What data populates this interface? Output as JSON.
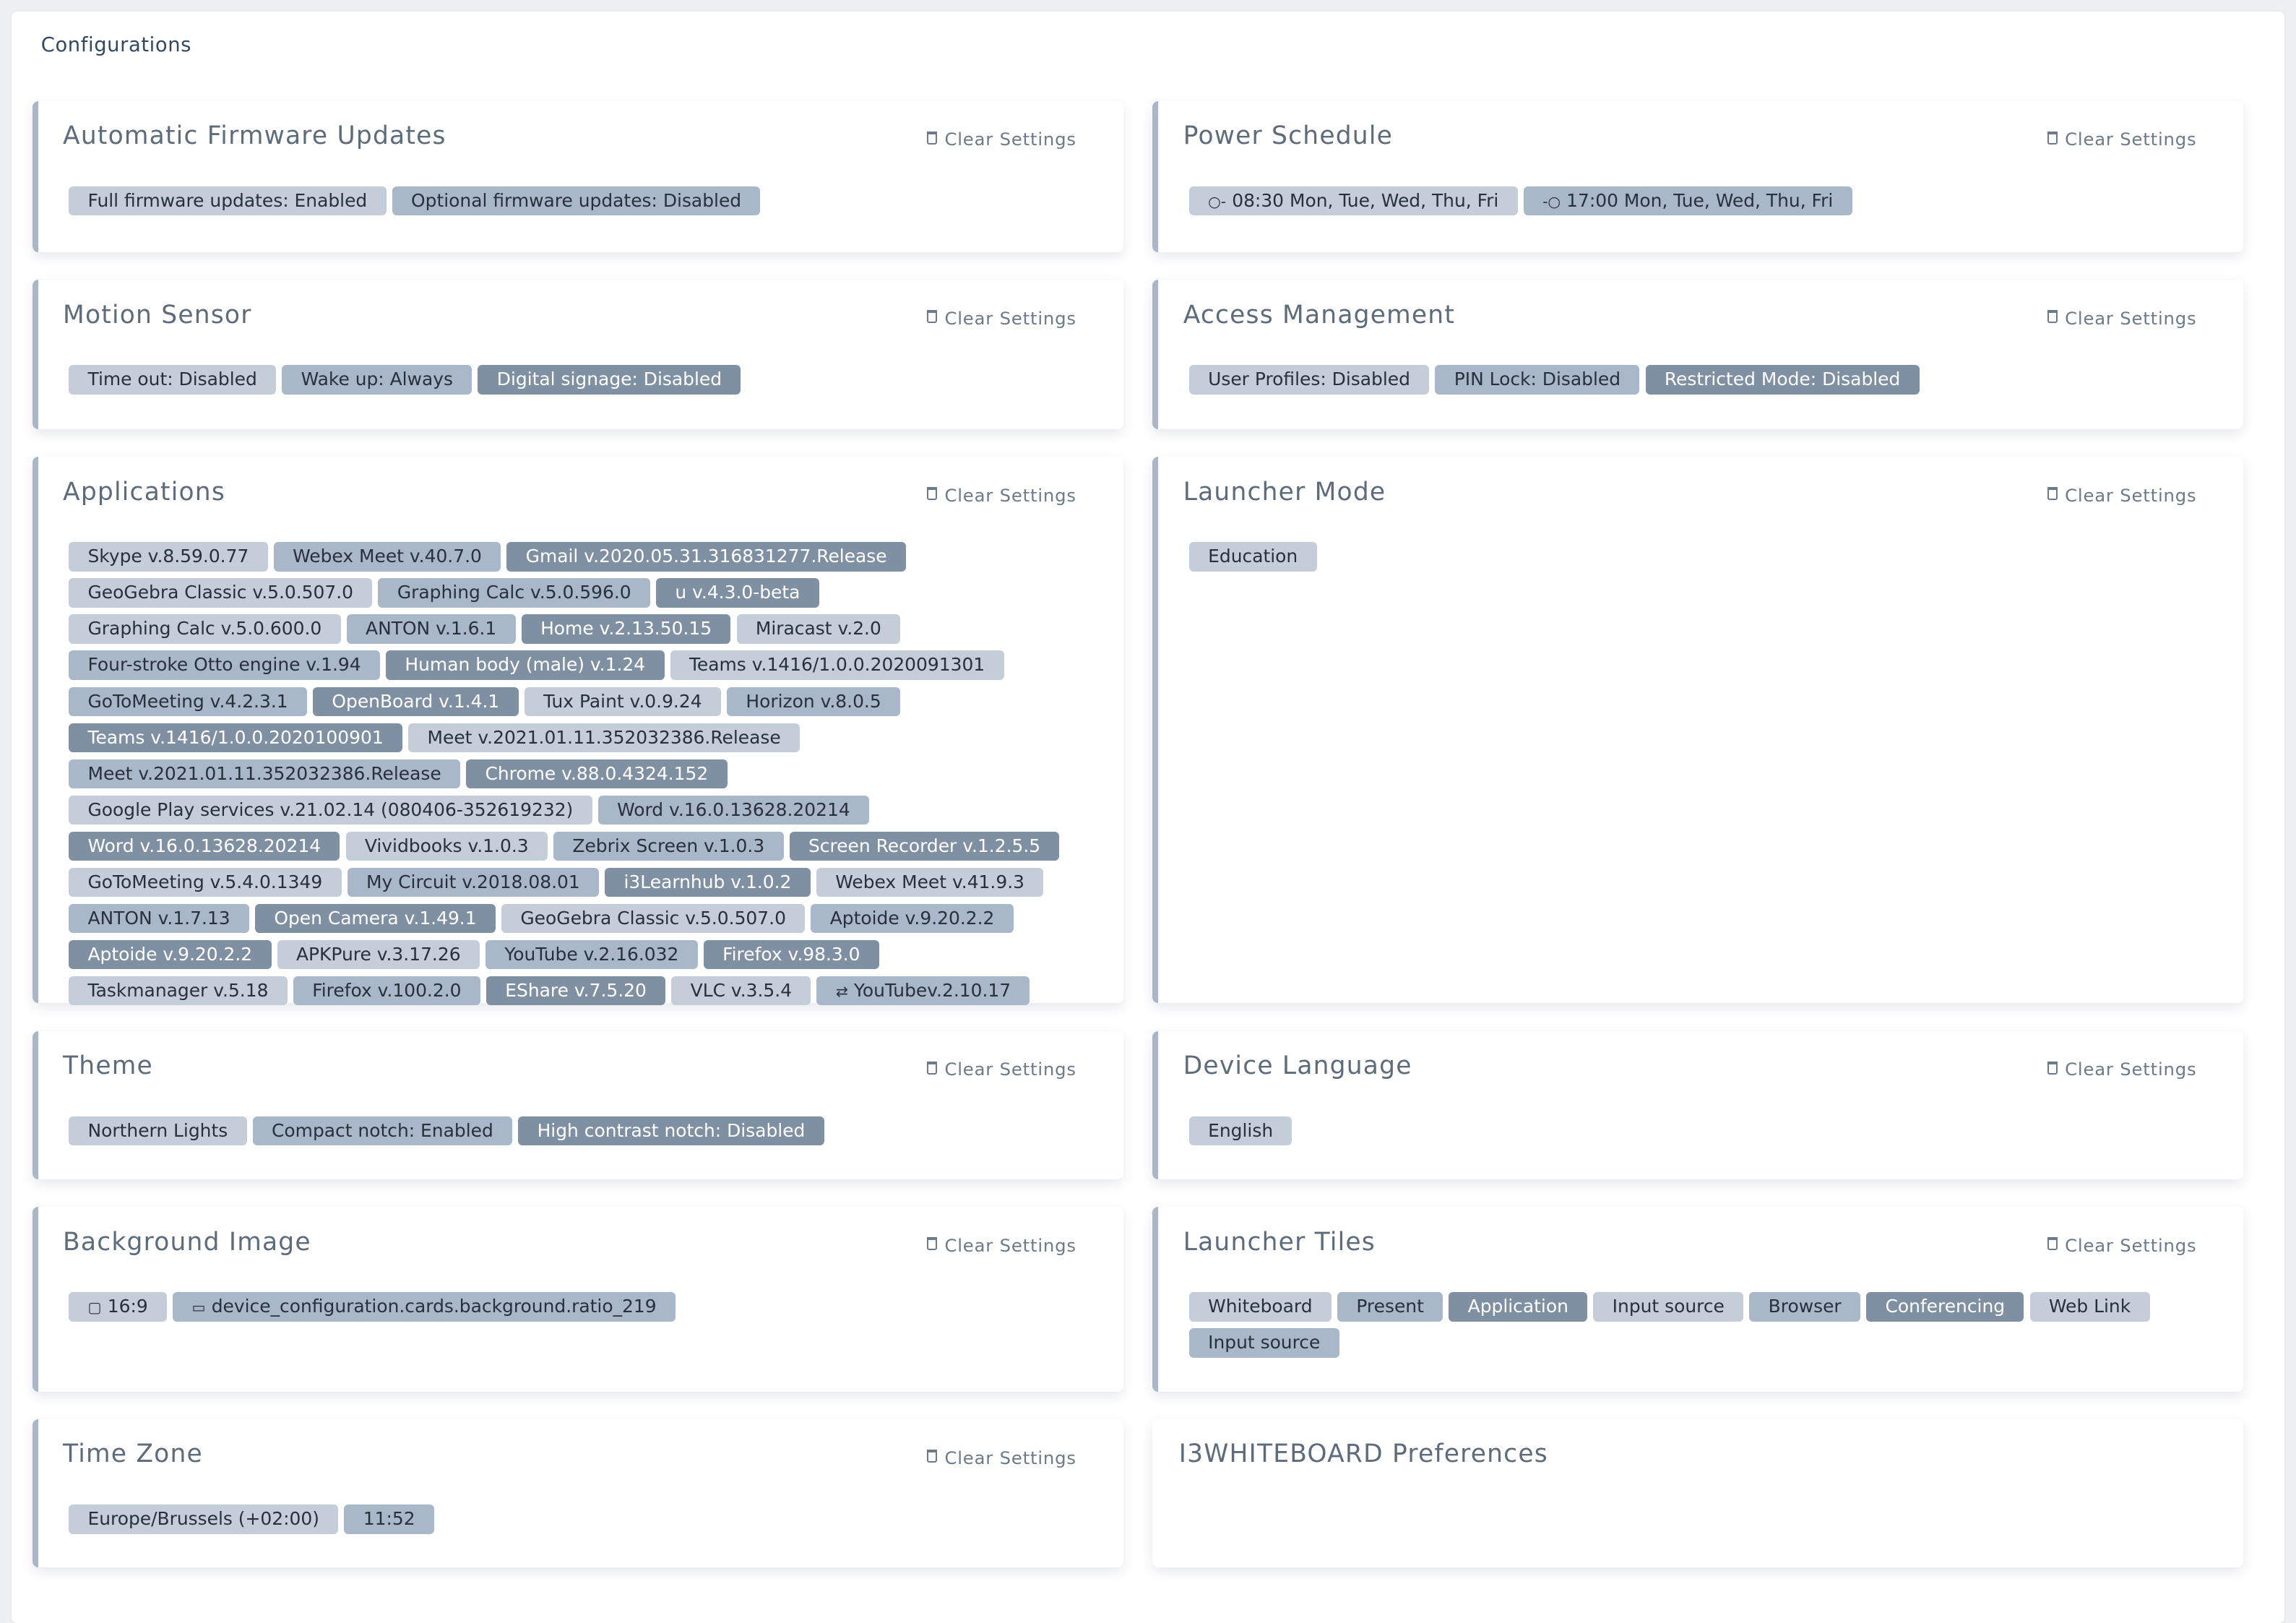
{
  "page": {
    "title": "Configurations"
  },
  "clear_label": "Clear Settings",
  "colors": {
    "tag_light": "#c5ced8",
    "tag_mid": "#a9b8c9",
    "tag_dark": "#7f90a3",
    "card_accent": "#aab7c7"
  },
  "cards": [
    {
      "title": "Automatic Firmware Updates",
      "clear": true,
      "tags": [
        {
          "text": "Full firmware updates: Enabled"
        },
        {
          "text": "Optional firmware updates: Disabled"
        }
      ]
    },
    {
      "title": "Power Schedule",
      "clear": true,
      "tags": [
        {
          "text": "08:30 Mon, Tue, Wed, Thu, Fri",
          "icon": "power-on-icon",
          "glyph": "○-"
        },
        {
          "text": "17:00 Mon, Tue, Wed, Thu, Fri",
          "icon": "power-off-icon",
          "glyph": "-○"
        }
      ]
    },
    {
      "title": "Motion Sensor",
      "clear": true,
      "tags": [
        {
          "text": "Time out: Disabled"
        },
        {
          "text": "Wake up: Always"
        },
        {
          "text": "Digital signage: Disabled"
        }
      ]
    },
    {
      "title": "Access Management",
      "clear": true,
      "tags": [
        {
          "text": "User Profiles: Disabled"
        },
        {
          "text": "PIN Lock: Disabled"
        },
        {
          "text": "Restricted Mode: Disabled"
        }
      ]
    },
    {
      "title": "Applications",
      "clear": true,
      "tags": [
        {
          "text": "Skype v.8.59.0.77"
        },
        {
          "text": "Webex Meet v.40.7.0"
        },
        {
          "text": "Gmail v.2020.05.31.316831277.Release"
        },
        {
          "text": "GeoGebra Classic v.5.0.507.0"
        },
        {
          "text": "Graphing Calc v.5.0.596.0"
        },
        {
          "text": "u v.4.3.0-beta"
        },
        {
          "text": "Graphing Calc v.5.0.600.0"
        },
        {
          "text": "ANTON v.1.6.1"
        },
        {
          "text": "Home v.2.13.50.15"
        },
        {
          "text": "Miracast v.2.0"
        },
        {
          "text": "Four-stroke Otto engine v.1.94"
        },
        {
          "text": "Human body (male) v.1.24"
        },
        {
          "text": "Teams v.1416/1.0.0.2020091301"
        },
        {
          "text": "GoToMeeting v.4.2.3.1"
        },
        {
          "text": "OpenBoard v.1.4.1"
        },
        {
          "text": "Tux Paint v.0.9.24"
        },
        {
          "text": "Horizon v.8.0.5"
        },
        {
          "text": "Teams v.1416/1.0.0.2020100901"
        },
        {
          "text": "Meet v.2021.01.11.352032386.Release"
        },
        {
          "text": "Meet v.2021.01.11.352032386.Release"
        },
        {
          "text": "Chrome v.88.0.4324.152"
        },
        {
          "text": "Google Play services v.21.02.14 (080406-352619232)"
        },
        {
          "text": "Word v.16.0.13628.20214"
        },
        {
          "text": "Word v.16.0.13628.20214"
        },
        {
          "text": "Vividbooks v.1.0.3"
        },
        {
          "text": "Zebrix Screen v.1.0.3"
        },
        {
          "text": "Screen Recorder v.1.2.5.5"
        },
        {
          "text": "GoToMeeting v.5.4.0.1349"
        },
        {
          "text": "My Circuit v.2018.08.01"
        },
        {
          "text": "i3Learnhub v.1.0.2"
        },
        {
          "text": "Webex Meet v.41.9.3"
        },
        {
          "text": "ANTON v.1.7.13"
        },
        {
          "text": "Open Camera v.1.49.1"
        },
        {
          "text": "GeoGebra Classic v.5.0.507.0"
        },
        {
          "text": "Aptoide v.9.20.2.2"
        },
        {
          "text": "Aptoide v.9.20.2.2"
        },
        {
          "text": "APKPure v.3.17.26"
        },
        {
          "text": "YouTube v.2.16.032"
        },
        {
          "text": "Firefox v.98.3.0"
        },
        {
          "text": "Taskmanager v.5.18"
        },
        {
          "text": "Firefox v.100.2.0"
        },
        {
          "text": "EShare v.7.5.20"
        },
        {
          "text": "VLC v.3.5.4"
        },
        {
          "text": "YouTubev.2.10.17",
          "icon": "swap-icon",
          "glyph": "⇄"
        }
      ]
    },
    {
      "title": "Launcher Mode",
      "clear": true,
      "tags": [
        {
          "text": "Education"
        }
      ]
    },
    {
      "title": "Theme",
      "clear": true,
      "tags": [
        {
          "text": "Northern Lights"
        },
        {
          "text": "Compact notch: Enabled"
        },
        {
          "text": "High contrast notch: Disabled"
        }
      ]
    },
    {
      "title": "Device Language",
      "clear": true,
      "tags": [
        {
          "text": "English"
        }
      ]
    },
    {
      "title": "Background Image",
      "clear": true,
      "tags": [
        {
          "text": "16:9",
          "icon": "aspect-ratio-icon",
          "glyph": "▢"
        },
        {
          "text": "device_configuration.cards.background.ratio_219",
          "icon": "wide-ratio-icon",
          "glyph": "▭"
        }
      ]
    },
    {
      "title": "Launcher Tiles",
      "clear": true,
      "tags": [
        {
          "text": "Whiteboard"
        },
        {
          "text": "Present"
        },
        {
          "text": "Application"
        },
        {
          "text": "Input source"
        },
        {
          "text": "Browser"
        },
        {
          "text": "Conferencing"
        },
        {
          "text": "Web Link"
        },
        {
          "text": "Input source"
        }
      ]
    },
    {
      "title": "Time Zone",
      "clear": true,
      "tags": [
        {
          "text": "Europe/Brussels (+02:00)"
        },
        {
          "text": "11:52"
        }
      ]
    },
    {
      "title": "I3WHITEBOARD Preferences",
      "clear": false,
      "tags": []
    }
  ]
}
